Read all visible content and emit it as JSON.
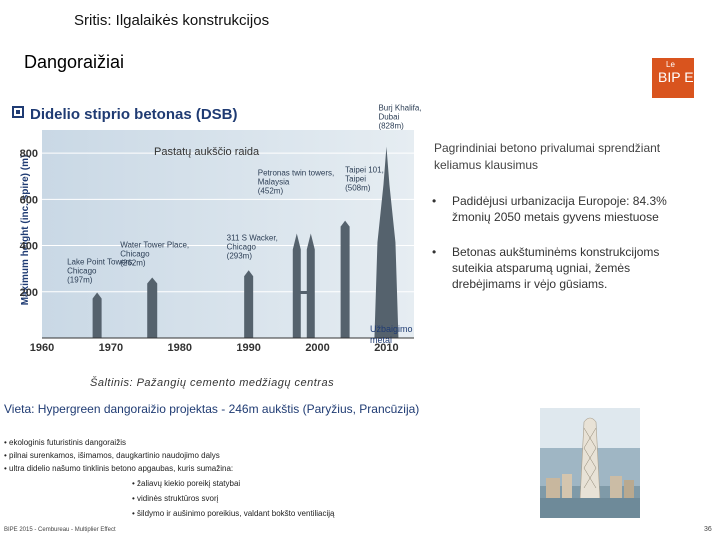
{
  "header": {
    "section": "Sritis: Ilgalaikės konstrukcijos",
    "title": "Dangoraižiai"
  },
  "logo": {
    "top_text": "Le",
    "main_text": "BIP E"
  },
  "chart": {
    "heading": "Didelio stiprio betonas (DSB)",
    "legend": "Pastatų aukščio raida",
    "ylabel": "Maximum height (inc. spire) (m)",
    "xlabel": "Užbaigimo metai",
    "source": "Šaltinis: Pažangių cemento medžiagų centras"
  },
  "chart_data": {
    "type": "bar",
    "title": "Didelio stiprio betonas (DSB)",
    "xlabel": "Užbaigimo metai",
    "ylabel": "Maximum height (inc. spire) (m)",
    "xlim": [
      1960,
      2014
    ],
    "ylim": [
      0,
      900
    ],
    "xticks": [
      1960,
      1970,
      1980,
      1990,
      2000,
      2010
    ],
    "yticks": [
      200,
      400,
      600,
      800
    ],
    "grid": true,
    "annotations": [
      {
        "label": "Lake Point Towers, Chicago",
        "value": "(197m)",
        "x": 1968,
        "y": 197
      },
      {
        "label": "Water Tower Place, Chicago",
        "value": "(262m)",
        "x": 1976,
        "y": 262
      },
      {
        "label": "311 S Wacker, Chicago",
        "value": "(293m)",
        "x": 1990,
        "y": 293
      },
      {
        "label": "Petronas twin towers, Malaysia",
        "value": "(452m)",
        "x": 1998,
        "y": 452
      },
      {
        "label": "Taipei 101, Taipei",
        "value": "(508m)",
        "x": 2004,
        "y": 508
      },
      {
        "label": "Burj Khalifa, Dubai",
        "value": "(828m)",
        "x": 2010,
        "y": 828
      }
    ]
  },
  "advantages": {
    "title": "Pagrindiniai betono privalumai sprendžiant keliamus klausimus",
    "items": [
      "Padidėjusi urbanizacija Europoje: 84.3% žmonių 2050 metais gyvens miestuose",
      "Betonas aukštuminėms konstrukcijoms suteikia atsparumą ugniai, žemės drebėjimams ir vėjo gūsiams."
    ],
    "bullet": "•"
  },
  "project": {
    "title": "Vieta: Hypergreen dangoraižio projektas - 246m aukštis (Paryžius, Prancūzija)",
    "items": [
      "• ekologinis futuristinis dangoraižis",
      "• pilnai surenkamos, išimamos, daugkartinio naudojimo dalys",
      "• ultra didelio našumo tinklinis betono apgaubas, kuris sumažina:"
    ],
    "subitems": [
      "• žaliavų kiekio poreikį statybai",
      "• vidinės struktūros svorį",
      "• šildymo ir aušinimo poreikius, valdant bokšto ventiliaciją"
    ]
  },
  "footer": {
    "left": "BIPE 2015 - Cembureau - Multiplier Effect",
    "page": "36"
  },
  "colors": {
    "accent": "#1f3b73",
    "logo": "#d9541e"
  }
}
